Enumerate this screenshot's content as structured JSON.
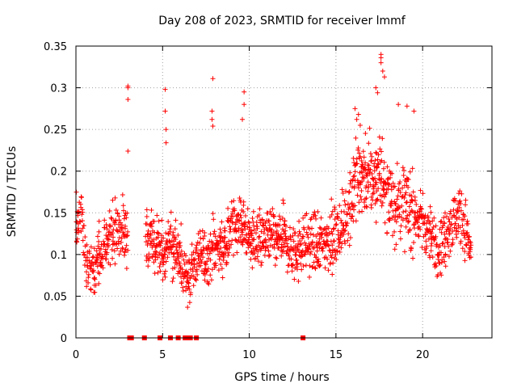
{
  "chart_data": {
    "type": "scatter",
    "title": "Day 208 of 2023, SRMTID for receiver lmmf",
    "xlabel": "GPS time / hours",
    "ylabel": "SRMTID / TECUs",
    "xlim": [
      0,
      24
    ],
    "ylim": [
      0,
      0.35
    ],
    "x_ticks": [
      0,
      5,
      10,
      15,
      20
    ],
    "y_ticks": [
      0,
      0.05,
      0.1,
      0.15,
      0.2,
      0.25,
      0.3,
      0.35
    ],
    "x_tick_labels": [
      "0",
      "5",
      "10",
      "15",
      "20"
    ],
    "y_tick_labels": [
      "0",
      "0.05",
      "0.1",
      "0.15",
      "0.2",
      "0.25",
      "0.3",
      "0.35"
    ],
    "grid": true,
    "marker": "+",
    "color": "#ff0000",
    "profile": [
      [
        0.0,
        0.13
      ],
      [
        0.3,
        0.15
      ],
      [
        0.6,
        0.09
      ],
      [
        1.0,
        0.085
      ],
      [
        1.5,
        0.1
      ],
      [
        2.0,
        0.13
      ],
      [
        2.5,
        0.125
      ],
      [
        3.0,
        0.13
      ],
      [
        3.3,
        null
      ],
      [
        4.0,
        0.12
      ],
      [
        4.5,
        0.11
      ],
      [
        5.0,
        0.1
      ],
      [
        5.4,
        0.12
      ],
      [
        5.8,
        0.1
      ],
      [
        6.2,
        0.08
      ],
      [
        6.6,
        0.08
      ],
      [
        7.0,
        0.09
      ],
      [
        7.5,
        0.1
      ],
      [
        8.0,
        0.11
      ],
      [
        8.5,
        0.11
      ],
      [
        9.0,
        0.13
      ],
      [
        9.5,
        0.14
      ],
      [
        10.0,
        0.12
      ],
      [
        11.0,
        0.12
      ],
      [
        12.0,
        0.12
      ],
      [
        12.5,
        0.1
      ],
      [
        13.0,
        0.11
      ],
      [
        14.0,
        0.11
      ],
      [
        15.0,
        0.12
      ],
      [
        15.5,
        0.14
      ],
      [
        16.0,
        0.18
      ],
      [
        16.5,
        0.2
      ],
      [
        17.0,
        0.19
      ],
      [
        17.5,
        0.2
      ],
      [
        18.0,
        0.17
      ],
      [
        18.5,
        0.16
      ],
      [
        19.0,
        0.16
      ],
      [
        19.5,
        0.15
      ],
      [
        20.0,
        0.14
      ],
      [
        20.5,
        0.12
      ],
      [
        21.0,
        0.11
      ],
      [
        21.5,
        0.13
      ],
      [
        22.0,
        0.15
      ],
      [
        22.5,
        0.13
      ],
      [
        22.8,
        0.1
      ]
    ],
    "outliers": [
      [
        3.0,
        0.3
      ],
      [
        3.0,
        0.302
      ],
      [
        3.0,
        0.286
      ],
      [
        3.0,
        0.224
      ],
      [
        5.15,
        0.298
      ],
      [
        5.15,
        0.272
      ],
      [
        5.2,
        0.25
      ],
      [
        5.2,
        0.234
      ],
      [
        7.9,
        0.311
      ],
      [
        7.85,
        0.272
      ],
      [
        7.85,
        0.262
      ],
      [
        7.9,
        0.254
      ],
      [
        9.7,
        0.295
      ],
      [
        9.7,
        0.28
      ],
      [
        9.6,
        0.262
      ],
      [
        17.6,
        0.34
      ],
      [
        17.6,
        0.336
      ],
      [
        17.6,
        0.33
      ],
      [
        17.7,
        0.32
      ],
      [
        17.8,
        0.313
      ],
      [
        16.1,
        0.275
      ],
      [
        16.3,
        0.268
      ],
      [
        16.2,
        0.262
      ],
      [
        16.4,
        0.255
      ],
      [
        18.6,
        0.28
      ],
      [
        19.1,
        0.278
      ],
      [
        19.5,
        0.272
      ],
      [
        17.4,
        0.294
      ],
      [
        17.3,
        0.3
      ]
    ],
    "zero_markers_x": [
      3.1,
      3.2,
      3.95,
      4.85,
      5.45,
      5.9,
      6.3,
      6.5,
      6.6,
      6.95,
      13.1
    ]
  }
}
